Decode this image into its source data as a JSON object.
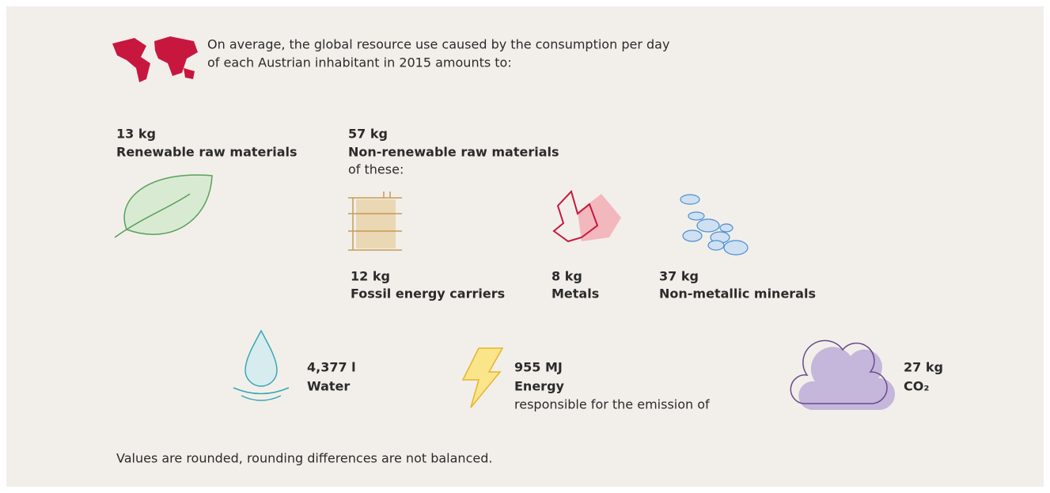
{
  "intro": [
    "On average, the global resource use caused by the consumption per day",
    "of each Austrian inhabitant in 2015 amounts to:"
  ],
  "renewable": {
    "value": "13 kg",
    "label": "Renewable raw materials"
  },
  "non_renewable": {
    "value": "57 kg",
    "label": "Non-renewable raw materials",
    "note": "of these:",
    "parts": [
      {
        "value": "12 kg",
        "label": "Fossil energy carriers"
      },
      {
        "value": "8 kg",
        "label": "Metals"
      },
      {
        "value": "37 kg",
        "label": "Non-metallic minerals"
      }
    ]
  },
  "water": {
    "value": "4,377 l",
    "label": "Water"
  },
  "energy": {
    "value": "955 MJ",
    "label": "Energy",
    "note": "responsible for the emission of"
  },
  "co2": {
    "value": "27 kg",
    "label": "CO₂"
  },
  "footnote": "Values are rounded, rounding differences are not balanced."
}
